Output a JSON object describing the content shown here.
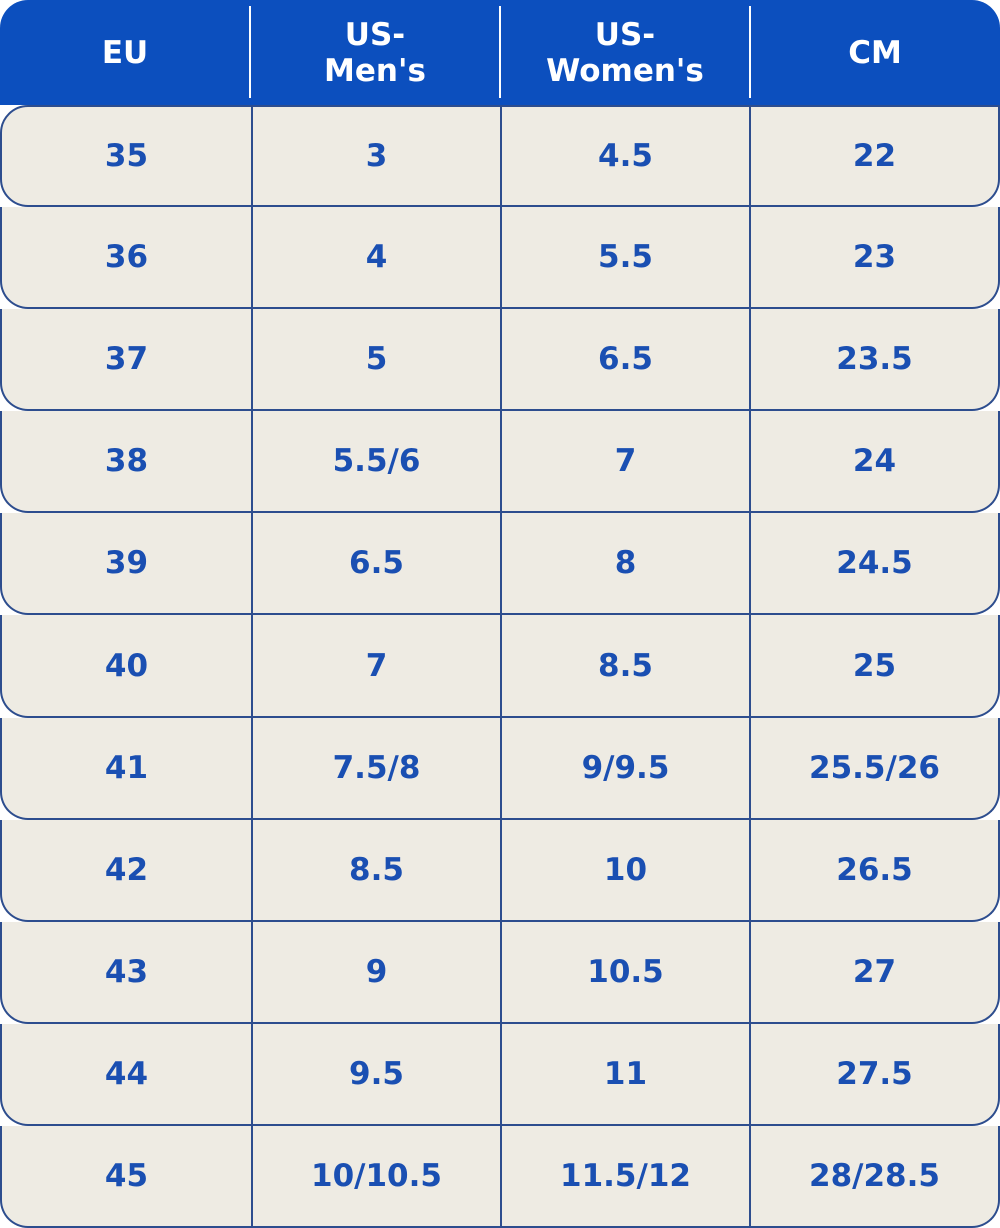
{
  "headers": [
    "EU",
    "US-\nMen's",
    "US-\nWomen's",
    "CM"
  ],
  "rows": [
    [
      "35",
      "3",
      "4.5",
      "22"
    ],
    [
      "36",
      "4",
      "5.5",
      "23"
    ],
    [
      "37",
      "5",
      "6.5",
      "23.5"
    ],
    [
      "38",
      "5.5/6",
      "7",
      "24"
    ],
    [
      "39",
      "6.5",
      "8",
      "24.5"
    ],
    [
      "40",
      "7",
      "8.5",
      "25"
    ],
    [
      "41",
      "7.5/8",
      "9/9.5",
      "25.5/26"
    ],
    [
      "42",
      "8.5",
      "10",
      "26.5"
    ],
    [
      "43",
      "9",
      "10.5",
      "27"
    ],
    [
      "44",
      "9.5",
      "11",
      "27.5"
    ],
    [
      "45",
      "10/10.5",
      "11.5/12",
      "28/28.5"
    ]
  ],
  "colors": {
    "header": "#0c4fbe",
    "text": "#1a4fb2",
    "cell_bg": "#eeebe3",
    "border": "#2d4d8e"
  }
}
